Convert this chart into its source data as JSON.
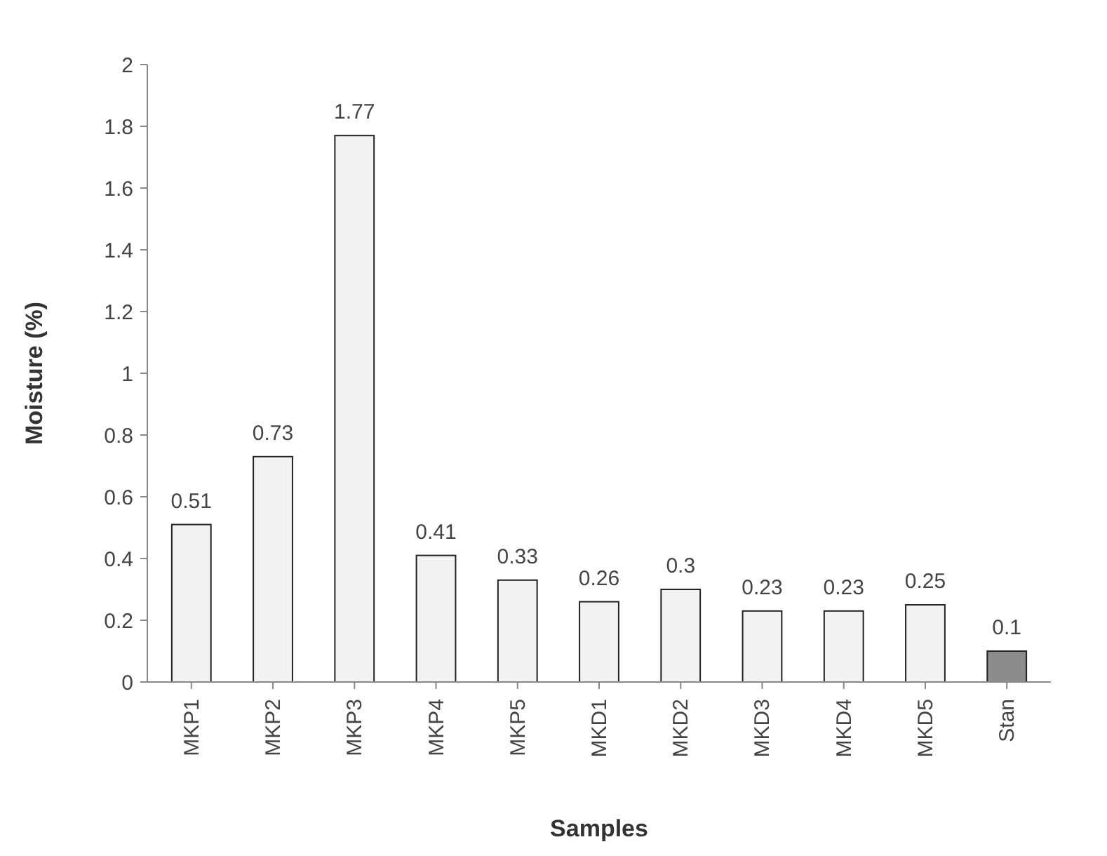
{
  "chart_data": {
    "type": "bar",
    "xlabel": "Samples",
    "ylabel": "Moisture (%)",
    "categories": [
      "MKP1",
      "MKP2",
      "MKP3",
      "MKP4",
      "MKP5",
      "MKD1",
      "MKD2",
      "MKD3",
      "MKD4",
      "MKD5",
      "Stan"
    ],
    "values": [
      0.51,
      0.73,
      1.77,
      0.41,
      0.33,
      0.26,
      0.3,
      0.23,
      0.23,
      0.25,
      0.1
    ],
    "colors": [
      "#f2f2f2",
      "#f2f2f2",
      "#f2f2f2",
      "#f2f2f2",
      "#f2f2f2",
      "#f2f2f2",
      "#f2f2f2",
      "#f2f2f2",
      "#f2f2f2",
      "#f2f2f2",
      "#8c8c8c"
    ],
    "ylim": [
      0,
      2
    ],
    "yticks": [
      0,
      {
        "value": 0.2,
        "label": "0.2"
      },
      {
        "value": 0.4,
        "label": "0.4"
      },
      {
        "value": 0.6,
        "label": "0.6"
      },
      {
        "value": 0.8,
        "label": "0.8"
      },
      1,
      {
        "value": 1.2,
        "label": "1.2"
      },
      {
        "value": 1.4,
        "label": "1.4"
      },
      {
        "value": 1.6,
        "label": "1.6"
      },
      {
        "value": 1.8,
        "label": "1.8"
      },
      2
    ],
    "data_labels": true
  }
}
